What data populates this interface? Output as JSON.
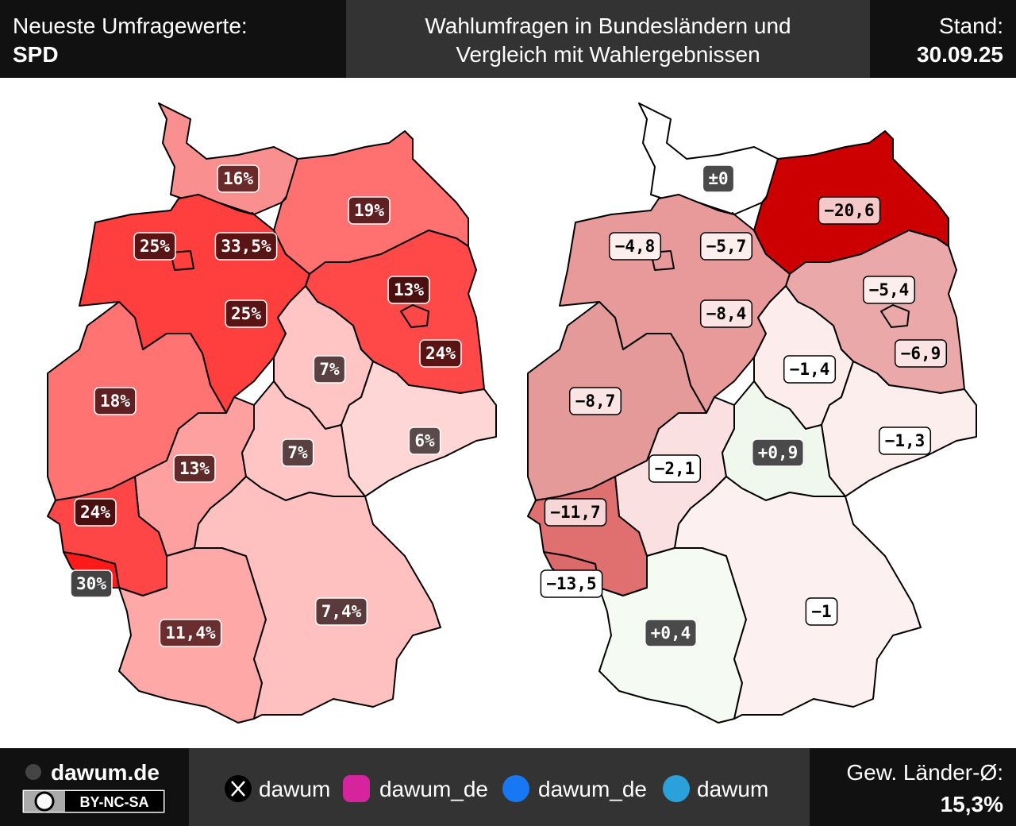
{
  "header": {
    "left_title": "Neueste Umfragewerte:",
    "party": "SPD",
    "center_lines": [
      "Wahlumfragen in Bundesländern und",
      "Vergleich mit Wahlergebnissen"
    ],
    "stand_label": "Stand:",
    "date": "30.09.25"
  },
  "maps": [
    {
      "regions": [
        {
          "label": "16%",
          "fill": "#f98f8f",
          "label_fill": "#6b2a2a"
        },
        {
          "label": "33,5%",
          "fill": "#e8262c",
          "label_fill": "#5a1414"
        },
        {
          "label": "25%",
          "fill": "#ff3e3e",
          "label_fill": "#5a1414"
        },
        {
          "label": "25%",
          "fill": "#ff3e3e",
          "label_fill": "#5a1414"
        },
        {
          "label": "19%",
          "fill": "#ff7070",
          "label_fill": "#5e2020"
        },
        {
          "label": "24%",
          "fill": "#ff4848",
          "label_fill": "#5a1414"
        },
        {
          "label": "13%",
          "fill": "#ff4848",
          "label_fill": "#4a1010"
        },
        {
          "label": "7%",
          "fill": "#ffc4c4",
          "label_fill": "#5a4040"
        },
        {
          "label": "6%",
          "fill": "#ffd6d6",
          "label_fill": "#5a4a4a"
        },
        {
          "label": "18%",
          "fill": "#ff7373",
          "label_fill": "#5e2020"
        },
        {
          "label": "13%",
          "fill": "#ffa0a0",
          "label_fill": "#5e2a2a"
        },
        {
          "label": "7%",
          "fill": "#ffc4c4",
          "label_fill": "#5a4040"
        },
        {
          "label": "24%",
          "fill": "#ff4646",
          "label_fill": "#4a1010"
        },
        {
          "label": "30%",
          "fill": "#ff1a1a",
          "label_fill": "#444444"
        },
        {
          "label": "11,4%",
          "fill": "#ffa8a8",
          "label_fill": "#6b2e2e"
        },
        {
          "label": "7,4%",
          "fill": "#ffc0c0",
          "label_fill": "#5a3a3a"
        }
      ]
    },
    {
      "regions": [
        {
          "label": "±0",
          "fill": "#ffffff",
          "label_fill": "#4a4a4a"
        },
        {
          "label": "−5,7",
          "fill": "#ffffff",
          "label_fill": "#fdeeee"
        },
        {
          "label": "−8,4",
          "fill": "#e89a9a",
          "label_fill": "#fbe4e4"
        },
        {
          "label": "−4,8",
          "fill": "#e89a9a",
          "label_fill": "#fdeeee"
        },
        {
          "label": "−20,6",
          "fill": "#cc0000",
          "label_fill": "#f6c9c9"
        },
        {
          "label": "−6,9",
          "fill": "#eaa8a8",
          "label_fill": "#fbe4e4"
        },
        {
          "label": "−5,4",
          "fill": "#eaa8a8",
          "label_fill": "#fdeeee"
        },
        {
          "label": "−1,4",
          "fill": "#fdecec",
          "label_fill": "#ffffff"
        },
        {
          "label": "−1,3",
          "fill": "#fdeeee",
          "label_fill": "#ffffff"
        },
        {
          "label": "−8,7",
          "fill": "#e59a9a",
          "label_fill": "#fbe4e4"
        },
        {
          "label": "−2,1",
          "fill": "#fae0e0",
          "label_fill": "#ffffff"
        },
        {
          "label": "+0,9",
          "fill": "#f0f8ee",
          "label_fill": "#4a4a4a"
        },
        {
          "label": "−11,7",
          "fill": "#e07070",
          "label_fill": "#f6d6d6"
        },
        {
          "label": "−13,5",
          "fill": "#dc6a6a",
          "label_fill": "#ffffff"
        },
        {
          "label": "+0,4",
          "fill": "#f5fbf3",
          "label_fill": "#4a4a4a"
        },
        {
          "label": "−1",
          "fill": "#fcf0f0",
          "label_fill": "#ffffff"
        }
      ]
    }
  ],
  "footer": {
    "site": "dawum.de",
    "license": "BY-NC-SA",
    "socials": [
      "dawum",
      "dawum_de",
      "dawum_de",
      "dawum"
    ],
    "avg_label": "Gew. Länder-Ø:",
    "avg_value": "15,3%"
  }
}
